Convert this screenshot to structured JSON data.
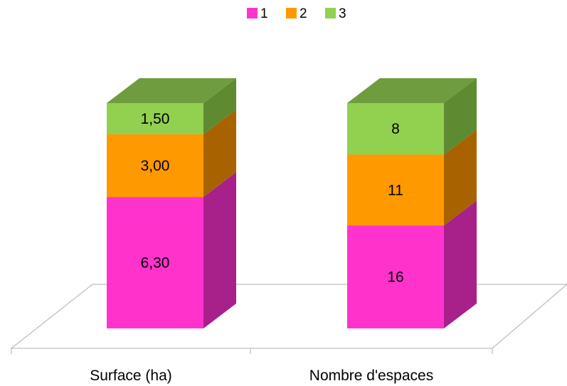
{
  "chart_data": {
    "type": "bar",
    "stacked": true,
    "three_d": true,
    "categories": [
      "Surface (ha)",
      "Nombre d'espaces"
    ],
    "series": [
      {
        "name": "1",
        "values": [
          6.3,
          16
        ],
        "labels": [
          "6,30",
          "16"
        ],
        "color": "#FF33CC",
        "side_color": "#A8208A",
        "top_color": "#C8289F"
      },
      {
        "name": "2",
        "values": [
          3.0,
          11
        ],
        "labels": [
          "3,00",
          "11"
        ],
        "color": "#FF9900",
        "side_color": "#A86300",
        "top_color": "#CC7A00"
      },
      {
        "name": "3",
        "values": [
          1.5,
          8
        ],
        "labels": [
          "1,50",
          "8"
        ],
        "color": "#92D050",
        "side_color": "#5E8A32",
        "top_color": "#6F9C3E"
      }
    ],
    "legend": {
      "position": "top",
      "entries": [
        "1",
        "2",
        "3"
      ]
    },
    "title": "",
    "xlabel": "",
    "ylabel": "",
    "grid": false,
    "floor_color": "#BFBFBF"
  }
}
